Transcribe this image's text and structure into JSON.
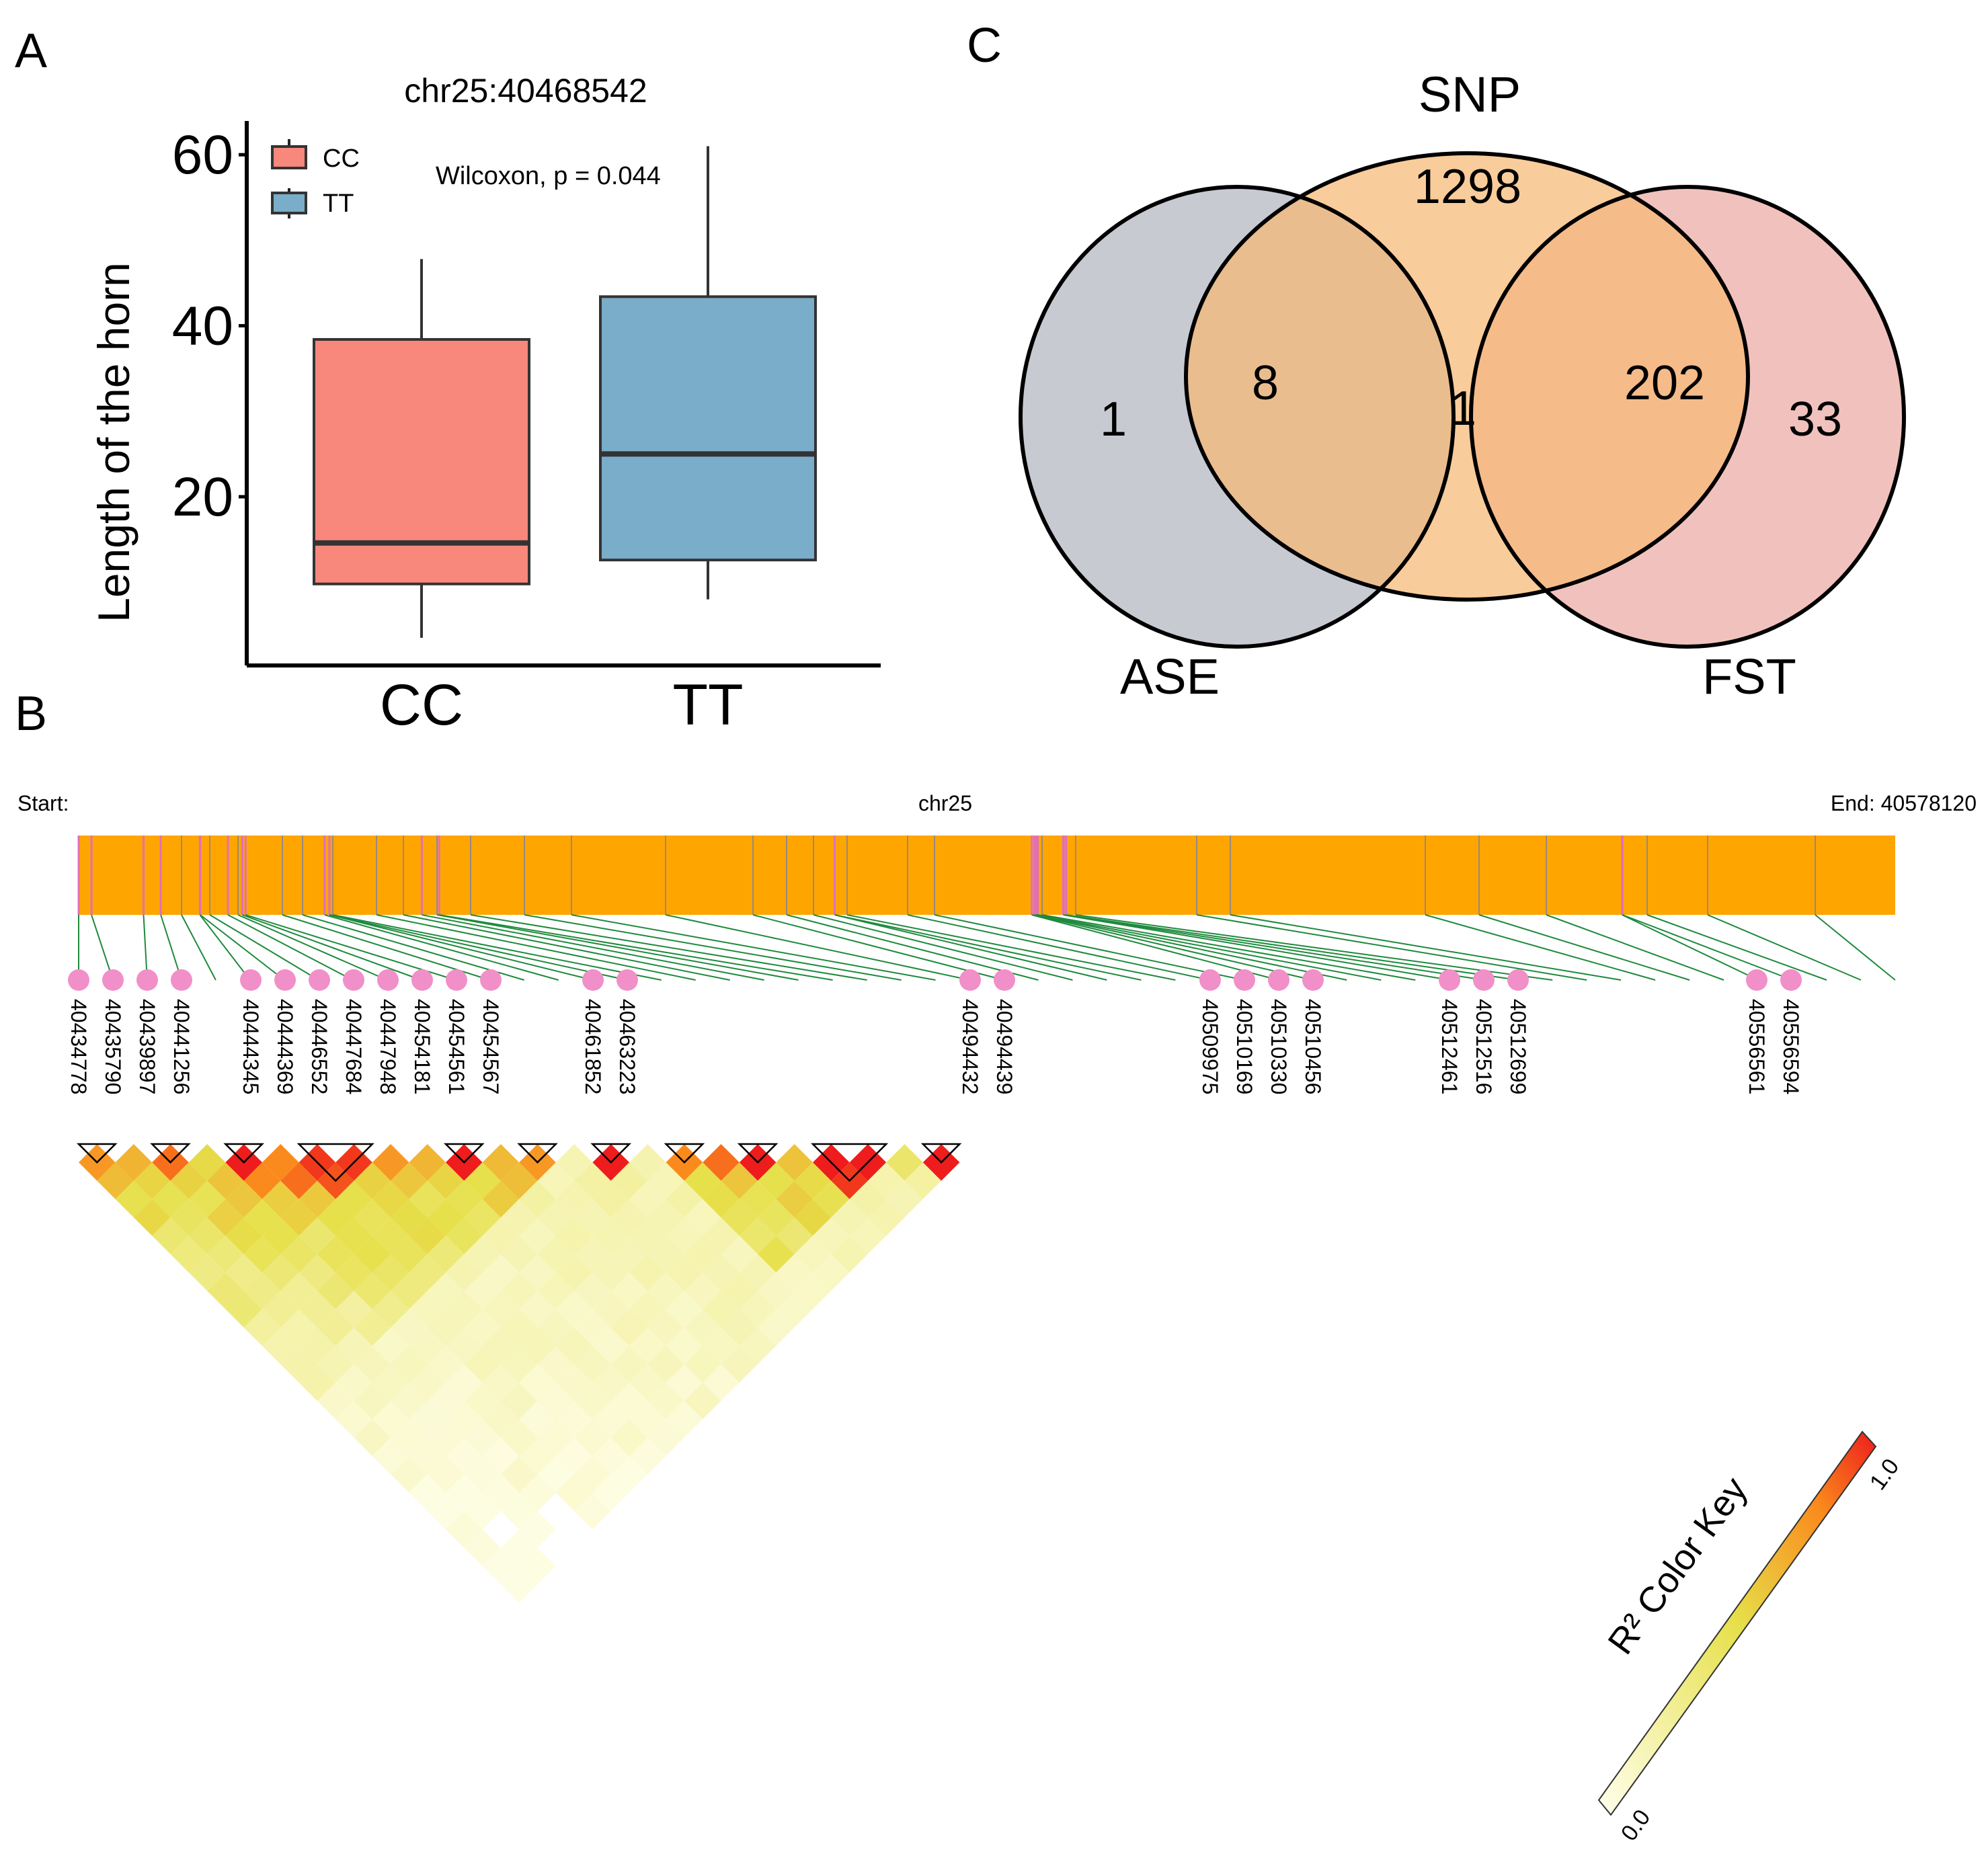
{
  "panels": {
    "a": "A",
    "b": "B",
    "c": "C"
  },
  "boxplot": {
    "type": "boxplot",
    "title": "chr25:40468542",
    "ylabel": "Length of the horn",
    "yticks": [
      20,
      40,
      60
    ],
    "ylim": [
      0,
      63
    ],
    "categories": [
      "CC",
      "TT"
    ],
    "annotation": "Wilcoxon, p = 0.044",
    "legend": [
      {
        "label": "CC",
        "color": "#f8877c"
      },
      {
        "label": "TT",
        "color": "#79adc9"
      }
    ],
    "boxes": [
      {
        "category": "CC",
        "min": 3.5,
        "q1": 9.8,
        "median": 14.6,
        "q3": 38.4,
        "max": 47.8,
        "color": "#f8877c"
      },
      {
        "category": "TT",
        "min": 8.0,
        "q1": 12.6,
        "median": 25.0,
        "q3": 43.4,
        "max": 61.0,
        "color": "#79adc9"
      }
    ]
  },
  "venn": {
    "type": "venn",
    "sets": [
      {
        "name": "SNP",
        "color": "#fbdca7"
      },
      {
        "name": "ASE",
        "color": "#bfc0c8"
      },
      {
        "name": "FST",
        "color": "#efb7b1"
      }
    ],
    "regions": [
      {
        "id": "snp_only",
        "label": "1298"
      },
      {
        "id": "ase_only",
        "label": "1"
      },
      {
        "id": "ase_snp",
        "label": "8"
      },
      {
        "id": "all",
        "label": "1"
      },
      {
        "id": "snp_fst",
        "label": "202"
      },
      {
        "id": "fst_only",
        "label": "33"
      }
    ]
  },
  "ld": {
    "start_label": "Start:",
    "chrom_label": "chr25",
    "end_label": "End: 40578120",
    "bar_color": "#ffa500",
    "marker_color": "#f18fc9",
    "connector_color": "#1e8a3c",
    "color_key_title": "R² Color Key",
    "color_key_min": "0.0",
    "color_key_max": "1.0",
    "snps": [
      "40434778",
      "40435790",
      "40439897",
      "40441256",
      "40444345",
      "40444369",
      "40446552",
      "40447684",
      "40447948",
      "40454181",
      "40454561",
      "40454567",
      "40461852",
      "40463223",
      "40494432",
      "40494439",
      "40509975",
      "40510169",
      "40510330",
      "40510456",
      "40512461",
      "40512516",
      "40512699",
      "40556561",
      "40556594"
    ]
  }
}
